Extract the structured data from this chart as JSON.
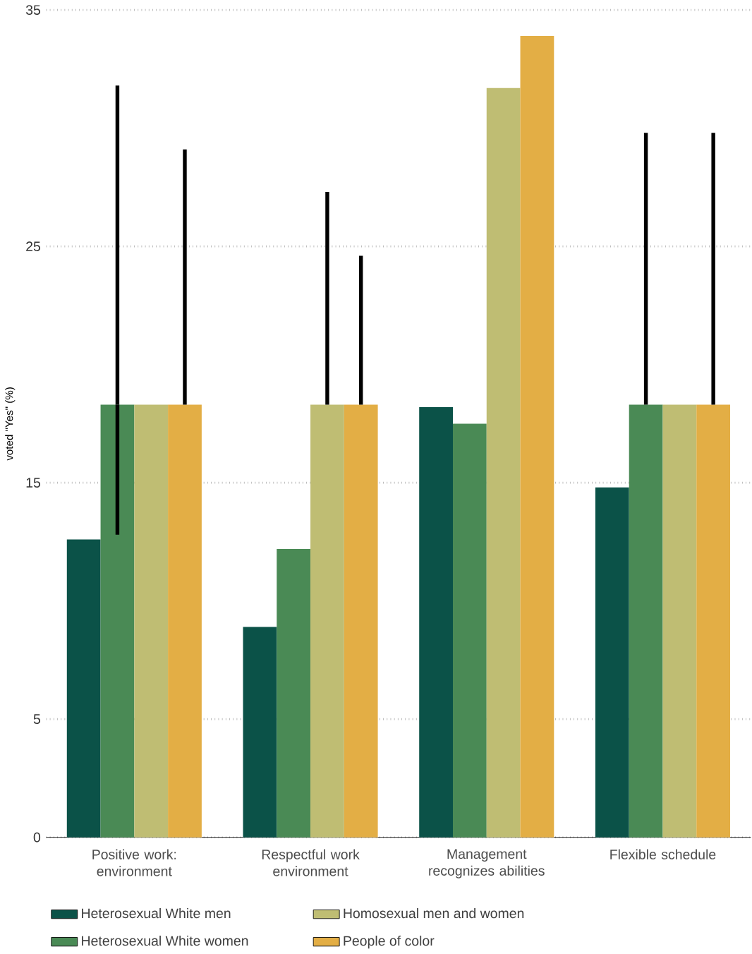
{
  "chart_data": {
    "type": "bar",
    "ylabel": "voted \"Yes\" (%)",
    "categories": [
      "Positive work: environment",
      "Respectful work environment",
      "Management recognizes abilities",
      "Flexible schedule"
    ],
    "series": [
      {
        "name": "Heterosexual White men",
        "color": "#0b5248",
        "values": [
          12.6,
          8.9,
          18.2,
          14.8
        ]
      },
      {
        "name": "Heterosexual White women",
        "color": "#4a8a55",
        "values": [
          18.3,
          12.2,
          17.5,
          18.3
        ],
        "errors": [
          [
            12.8,
            31.8
          ],
          null,
          null,
          [
            18.3,
            29.8
          ]
        ]
      },
      {
        "name": "Homosexual men and women",
        "color": "#bfbd73",
        "values": [
          18.3,
          18.3,
          31.7,
          18.3
        ],
        "errors": [
          null,
          [
            18.3,
            27.3
          ],
          null,
          null
        ]
      },
      {
        "name": "People of color",
        "color": "#e3ae45",
        "values": [
          18.3,
          18.3,
          33.9,
          18.3
        ],
        "errors": [
          [
            18.3,
            29.1
          ],
          [
            18.3,
            24.6
          ],
          null,
          [
            18.3,
            29.8
          ]
        ]
      }
    ],
    "ylim": [
      0,
      35
    ],
    "yticks": [
      0,
      5,
      15,
      25,
      35
    ],
    "grid": "y",
    "legend": "bottom"
  }
}
